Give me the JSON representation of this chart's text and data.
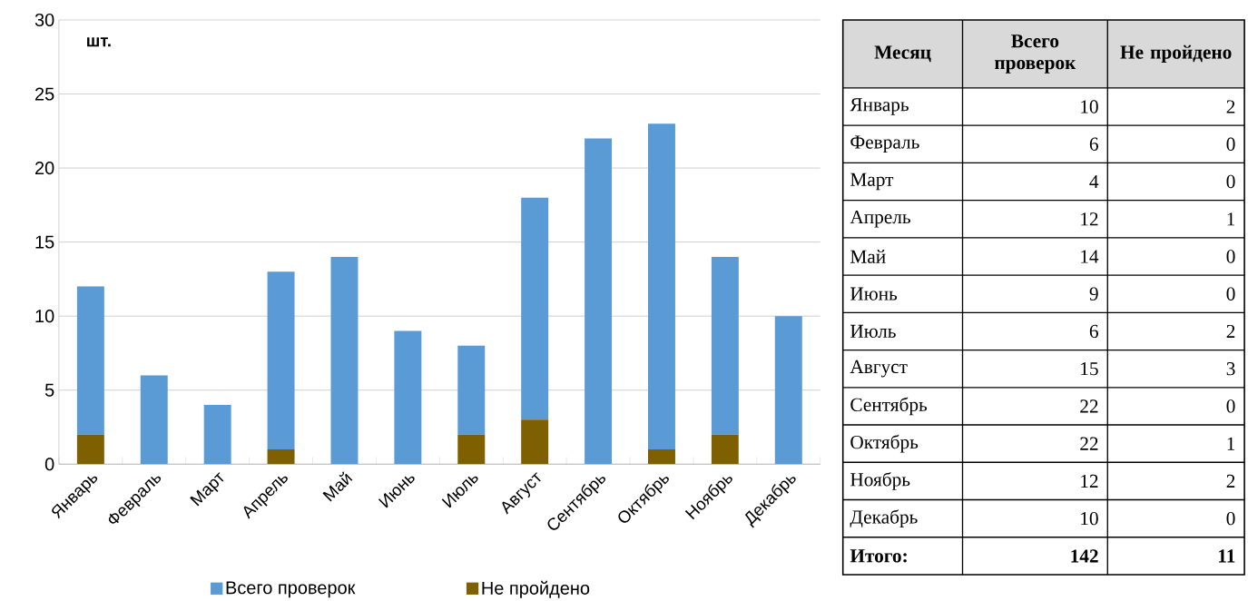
{
  "chart_data": [
    {
      "type": "bar",
      "stacked": true,
      "ylabel": "шт.",
      "categories": [
        "Январь",
        "Февраль",
        "Март",
        "Апрель",
        "Май",
        "Июнь",
        "Июль",
        "Август",
        "Сентябрь",
        "Октябрь",
        "Ноябрь",
        "Декабрь"
      ],
      "series": [
        {
          "name": "Не пройдено",
          "color": "#7f6000",
          "values": [
            2,
            0,
            0,
            1,
            0,
            0,
            2,
            3,
            0,
            1,
            2,
            0
          ]
        },
        {
          "name": "Всего проверок",
          "color": "#5b9bd5",
          "values": [
            10,
            6,
            4,
            12,
            14,
            9,
            6,
            15,
            22,
            22,
            12,
            10
          ]
        }
      ],
      "ylim": [
        0,
        30
      ],
      "yticks": [
        0,
        5,
        10,
        15,
        20,
        25,
        30
      ],
      "grid": "y",
      "legend": "bottom"
    },
    {
      "type": "other",
      "xlabel": "Месяц",
      "categories": [
        "Январь",
        "Февраль",
        "Март",
        "Апрель",
        "Май",
        "Июнь",
        "Июль",
        "Август",
        "Сентябрь",
        "Октябрь",
        "Ноябрь",
        "Декабрь"
      ],
      "series": [
        {
          "name": "Всего проверок",
          "values": [
            10,
            6,
            4,
            12,
            14,
            9,
            6,
            15,
            22,
            22,
            12,
            10
          ]
        },
        {
          "name": "Не пройдено",
          "values": [
            2,
            0,
            0,
            1,
            0,
            0,
            2,
            3,
            0,
            1,
            2,
            0
          ]
        }
      ],
      "data_labels": true,
      "annotations": [
        "Итого:",
        "142",
        "11"
      ]
    }
  ]
}
